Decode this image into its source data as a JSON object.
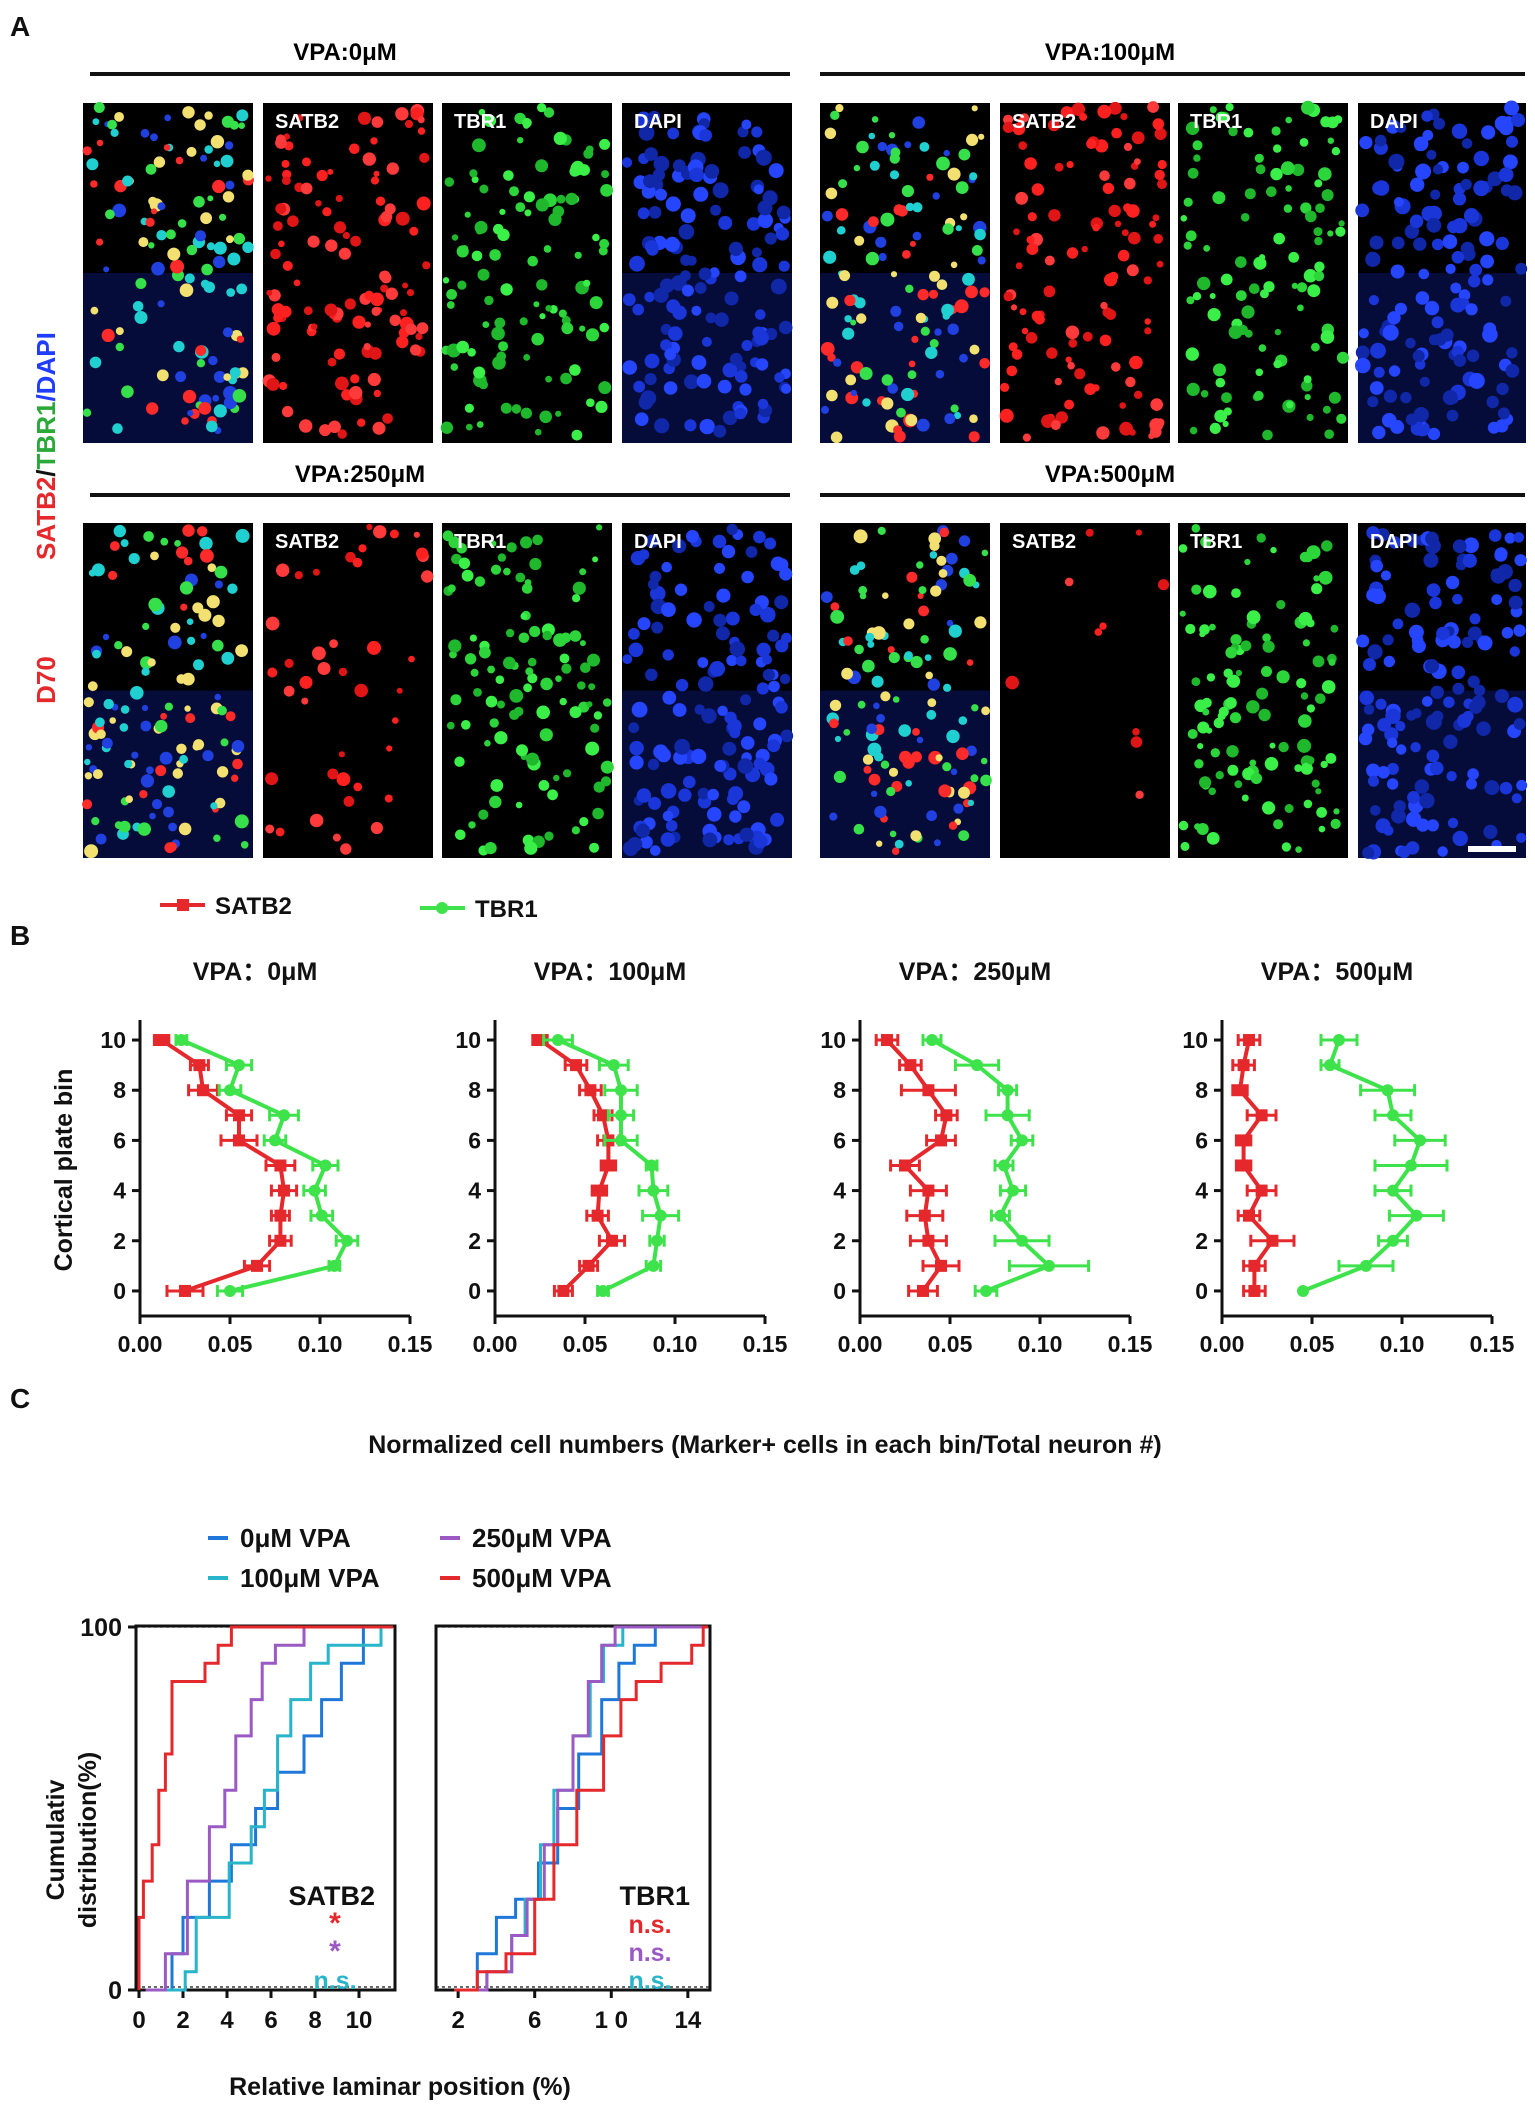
{
  "panels": {
    "a": "A",
    "b": "B",
    "c": "C"
  },
  "panel_a": {
    "groups": [
      "VPA:0μM",
      "VPA:100μM",
      "VPA:250μM",
      "VPA:500μM"
    ],
    "channels": [
      "",
      "SATB2",
      "TBR1",
      "DAPI"
    ],
    "side_label": {
      "part1": "SATB2",
      "part2": "/",
      "part3": "TBR1",
      "part4": "/DAPI"
    },
    "day_label": "D70"
  },
  "chart_data": [
    {
      "type": "line",
      "title": "VPA：0μM",
      "ylabel": "Cortical plate bin",
      "xlim": [
        0,
        0.15
      ],
      "ylim": [
        0,
        10
      ],
      "xticks": [
        "0.00",
        "0.05",
        "0.10",
        "0.15"
      ],
      "yticks": [
        "0",
        "2",
        "4",
        "6",
        "8",
        "10"
      ],
      "series": [
        {
          "name": "SATB2",
          "color": "#e4282c",
          "y": [
            0,
            1,
            2,
            3,
            4,
            5,
            6,
            7,
            8,
            9,
            10
          ],
          "x": [
            0.025,
            0.065,
            0.078,
            0.078,
            0.08,
            0.078,
            0.055,
            0.055,
            0.035,
            0.033,
            0.012
          ],
          "err": [
            0.01,
            0.007,
            0.006,
            0.005,
            0.007,
            0.008,
            0.01,
            0.007,
            0.008,
            0.005,
            0.004
          ]
        },
        {
          "name": "TBR1",
          "color": "#3ee24a",
          "y": [
            0,
            1,
            2,
            3,
            4,
            5,
            6,
            7,
            8,
            9,
            10
          ],
          "x": [
            0.05,
            0.108,
            0.115,
            0.101,
            0.097,
            0.103,
            0.075,
            0.08,
            0.05,
            0.055,
            0.023
          ],
          "err": [
            0.007,
            0.003,
            0.006,
            0.006,
            0.006,
            0.007,
            0.006,
            0.008,
            0.006,
            0.007,
            0.003
          ]
        }
      ]
    },
    {
      "type": "line",
      "title": "VPA：100μM",
      "xlim": [
        0,
        0.15
      ],
      "ylim": [
        0,
        10
      ],
      "xticks": [
        "0.00",
        "0.05",
        "0.10",
        "0.15"
      ],
      "yticks": [
        "0",
        "2",
        "4",
        "6",
        "8",
        "10"
      ],
      "series": [
        {
          "name": "SATB2",
          "color": "#e4282c",
          "y": [
            0,
            1,
            2,
            3,
            4,
            5,
            6,
            7,
            8,
            9,
            10
          ],
          "x": [
            0.038,
            0.052,
            0.065,
            0.057,
            0.058,
            0.063,
            0.063,
            0.06,
            0.053,
            0.045,
            0.025
          ],
          "err": [
            0.005,
            0.005,
            0.007,
            0.006,
            0.004,
            0.004,
            0.006,
            0.005,
            0.006,
            0.006,
            0.004
          ]
        },
        {
          "name": "TBR1",
          "color": "#3ee24a",
          "y": [
            0,
            1,
            2,
            3,
            4,
            5,
            6,
            7,
            8,
            9,
            10
          ],
          "x": [
            0.06,
            0.088,
            0.09,
            0.092,
            0.088,
            0.087,
            0.07,
            0.07,
            0.07,
            0.066,
            0.035
          ],
          "err": [
            0.003,
            0.004,
            0.004,
            0.01,
            0.008,
            0.003,
            0.009,
            0.007,
            0.009,
            0.008,
            0.008
          ]
        }
      ]
    },
    {
      "type": "line",
      "title": "VPA：250μM",
      "xlim": [
        0,
        0.15
      ],
      "ylim": [
        0,
        10
      ],
      "xticks": [
        "0.00",
        "0.05",
        "0.10",
        "0.15"
      ],
      "yticks": [
        "0",
        "2",
        "4",
        "6",
        "8",
        "10"
      ],
      "series": [
        {
          "name": "SATB2",
          "color": "#e4282c",
          "y": [
            0,
            1,
            2,
            3,
            4,
            5,
            6,
            7,
            8,
            9,
            10
          ],
          "x": [
            0.035,
            0.045,
            0.038,
            0.036,
            0.038,
            0.025,
            0.045,
            0.048,
            0.038,
            0.028,
            0.015
          ],
          "err": [
            0.008,
            0.01,
            0.01,
            0.01,
            0.01,
            0.008,
            0.008,
            0.006,
            0.015,
            0.006,
            0.006
          ]
        },
        {
          "name": "TBR1",
          "color": "#3ee24a",
          "y": [
            0,
            1,
            2,
            3,
            4,
            5,
            6,
            7,
            8,
            9,
            10
          ],
          "x": [
            0.07,
            0.105,
            0.09,
            0.078,
            0.085,
            0.08,
            0.09,
            0.082,
            0.082,
            0.065,
            0.04
          ],
          "err": [
            0.006,
            0.022,
            0.015,
            0.005,
            0.007,
            0.005,
            0.006,
            0.012,
            0.005,
            0.012,
            0.005
          ]
        }
      ]
    },
    {
      "type": "line",
      "title": "VPA：500μM",
      "xlim": [
        0,
        0.15
      ],
      "ylim": [
        0,
        10
      ],
      "xticks": [
        "0.00",
        "0.05",
        "0.10",
        "0.15"
      ],
      "yticks": [
        "0",
        "2",
        "4",
        "6",
        "8",
        "10"
      ],
      "series": [
        {
          "name": "SATB2",
          "color": "#e4282c",
          "y": [
            0,
            1,
            2,
            3,
            4,
            5,
            6,
            7,
            8,
            9,
            10
          ],
          "x": [
            0.018,
            0.018,
            0.028,
            0.015,
            0.022,
            0.012,
            0.012,
            0.022,
            0.01,
            0.012,
            0.015
          ],
          "err": [
            0.006,
            0.006,
            0.012,
            0.006,
            0.008,
            0.004,
            0.004,
            0.008,
            0.004,
            0.006,
            0.006
          ]
        },
        {
          "name": "TBR1",
          "color": "#3ee24a",
          "y": [
            0,
            1,
            2,
            3,
            4,
            5,
            6,
            7,
            8,
            9,
            10
          ],
          "x": [
            0.045,
            0.08,
            0.095,
            0.108,
            0.095,
            0.105,
            0.11,
            0.095,
            0.092,
            0.06,
            0.065
          ],
          "err": [
            0.0,
            0.015,
            0.008,
            0.015,
            0.01,
            0.02,
            0.014,
            0.01,
            0.015,
            0.005,
            0.01
          ]
        }
      ]
    }
  ],
  "panel_b_legend": [
    "SATB2",
    "TBR1"
  ],
  "panel_b_xlabel": "Normalized cell numbers (Marker+ cells in each bin/Total neuron #)",
  "cumulative_charts": [
    {
      "type": "line",
      "xlabel_shared": "Relative laminar position (%)",
      "ylabel": "Cumulativ\ndistribution(%)",
      "xlim": [
        0,
        11.5
      ],
      "ylim": [
        0,
        100
      ],
      "xticks": [
        "0",
        "2",
        "4",
        "6",
        "8",
        "10"
      ],
      "yticks": [
        "0",
        "100"
      ],
      "series": [
        {
          "name": "0μM VPA",
          "color": "#1f78d9",
          "x": [
            0.5,
            1.5,
            2.0,
            3.2,
            4.2,
            5.3,
            6.3,
            7.5,
            8.3,
            9.2,
            10.2
          ],
          "y": [
            0,
            10,
            20,
            30,
            40,
            50,
            60,
            70,
            80,
            90,
            100
          ]
        },
        {
          "name": "100μM VPA",
          "color": "#28b4c9",
          "x": [
            0.7,
            2.1,
            2.6,
            4.1,
            5.1,
            5.7,
            6.3,
            6.9,
            7.8,
            8.6,
            11.0
          ],
          "y": [
            0,
            5,
            20,
            35,
            45,
            55,
            70,
            80,
            90,
            95,
            100
          ]
        },
        {
          "name": "250μM VPA",
          "color": "#9b59c4",
          "x": [
            0.3,
            1.2,
            2.2,
            3.2,
            3.9,
            4.4,
            5.1,
            5.6,
            6.2,
            7.5,
            8.8
          ],
          "y": [
            0,
            10,
            30,
            45,
            55,
            70,
            80,
            90,
            95,
            100,
            100
          ]
        },
        {
          "name": "500μM VPA",
          "color": "#e4282c",
          "x": [
            0.0,
            0.2,
            0.6,
            0.9,
            1.2,
            1.5,
            2.4,
            3.0,
            3.6,
            4.2,
            4.8,
            5.6,
            7.8
          ],
          "y": [
            20,
            30,
            40,
            55,
            65,
            85,
            85,
            90,
            95,
            100,
            100,
            100,
            100
          ]
        }
      ],
      "label": "SATB2",
      "stats": [
        "*",
        "*",
        "n.s."
      ]
    },
    {
      "type": "line",
      "xlim": [
        1,
        15
      ],
      "ylim": [
        0,
        100
      ],
      "xticks": [
        "2",
        "6",
        "1 0",
        "14"
      ],
      "series": [
        {
          "name": "0μM VPA",
          "color": "#1f78d9",
          "x": [
            2.0,
            3.0,
            4.0,
            5.0,
            6.2,
            7.2,
            8.3,
            9.5,
            10.4,
            11.2,
            12.3
          ],
          "y": [
            0,
            10,
            20,
            25,
            35,
            50,
            65,
            80,
            90,
            95,
            100
          ]
        },
        {
          "name": "100μM VPA",
          "color": "#28b4c9",
          "x": [
            1.8,
            3.5,
            4.8,
            5.5,
            6.3,
            7.0,
            8.0,
            8.9,
            9.6,
            10.6,
            12.0
          ],
          "y": [
            0,
            5,
            15,
            25,
            40,
            55,
            70,
            85,
            95,
            100,
            100
          ]
        },
        {
          "name": "250μM VPA",
          "color": "#9b59c4",
          "x": [
            2.0,
            3.5,
            4.8,
            5.6,
            6.5,
            7.2,
            8.0,
            8.8,
            9.5,
            10.2,
            11.2
          ],
          "y": [
            0,
            5,
            15,
            25,
            40,
            55,
            70,
            85,
            95,
            100,
            100
          ]
        },
        {
          "name": "500μM VPA",
          "color": "#e4282c",
          "x": [
            1.8,
            3.0,
            4.5,
            6.0,
            7.0,
            8.2,
            9.6,
            10.5,
            11.3,
            12.6,
            14.2,
            14.8
          ],
          "y": [
            0,
            5,
            10,
            25,
            40,
            55,
            70,
            80,
            85,
            90,
            95,
            100
          ]
        }
      ],
      "label": "TBR1",
      "stats": [
        "n.s.",
        "n.s.",
        "n.s."
      ]
    }
  ],
  "panel_c_legend": [
    "0μM VPA",
    "250μM VPA",
    "100μM VPA",
    "500μM VPA"
  ],
  "colors": {
    "satb2": "#e4282c",
    "tbr1": "#3ee24a",
    "dapi": "#1f3cff"
  }
}
